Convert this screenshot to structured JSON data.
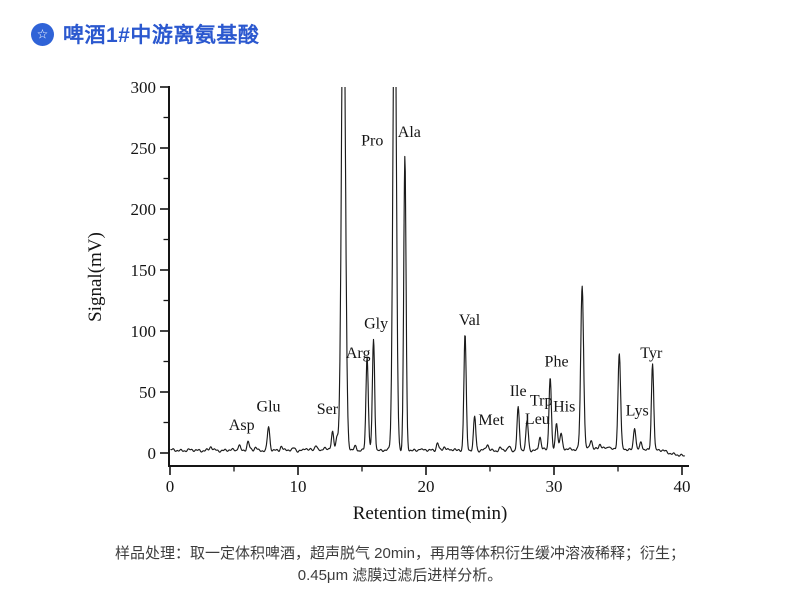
{
  "header": {
    "icon": "star-badge-icon",
    "title": "啤酒1#中游离氨基酸",
    "accent_color": "#2b58cf"
  },
  "caption": "样品处理：取一定体积啤酒，超声脱气 20min，再用等体积衍生缓冲溶液稀释；衍生；0.45μm 滤膜过滤后进样分析。",
  "chart_data": {
    "type": "line",
    "title": "",
    "xlabel": "Retention time(min)",
    "ylabel": "Signal(mV)",
    "xlim": [
      0,
      40
    ],
    "ylim": [
      0,
      300
    ],
    "xticks": [
      0,
      10,
      20,
      30,
      40
    ],
    "yticks": [
      0,
      50,
      100,
      150,
      200,
      250,
      300
    ],
    "x_minor_step": 5,
    "y_minor_step": 25,
    "grid": false,
    "legend": "none",
    "line_color": "#1b1b1b",
    "baseline_mv": 2.2,
    "peaks": [
      {
        "rt": 3.2,
        "mv": 5
      },
      {
        "rt": 5.4,
        "mv": 7
      },
      {
        "name": "Asp",
        "rt": 6.1,
        "mv": 9
      },
      {
        "rt": 6.7,
        "mv": 5
      },
      {
        "name": "Glu",
        "rt": 7.7,
        "mv": 21
      },
      {
        "rt": 8.7,
        "mv": 6
      },
      {
        "rt": 9.7,
        "mv": 4
      },
      {
        "rt": 10.6,
        "mv": 4
      },
      {
        "rt": 11.4,
        "mv": 7
      },
      {
        "rt": 12.05,
        "mv": 5
      },
      {
        "name": "Ser",
        "rt": 12.7,
        "mv": 18
      },
      {
        "rt": 13.05,
        "mv": 12
      },
      {
        "rt": 13.55,
        "mv": 300,
        "offscale": true,
        "sigma": 0.15
      },
      {
        "rt": 14.5,
        "mv": 6
      },
      {
        "name": "Arg",
        "rt": 15.4,
        "mv": 79
      },
      {
        "name": "Gly",
        "rt": 15.9,
        "mv": 93
      },
      {
        "name": "Pro",
        "rt": 17.55,
        "mv": 300,
        "offscale": true,
        "sigma": 0.13
      },
      {
        "name": "Ala",
        "rt": 18.35,
        "mv": 243
      },
      {
        "rt": 19.5,
        "mv": 4
      },
      {
        "rt": 20.9,
        "mv": 9
      },
      {
        "rt": 21.45,
        "mv": 5
      },
      {
        "rt": 22.2,
        "mv": 4
      },
      {
        "name": "Val",
        "rt": 23.05,
        "mv": 97
      },
      {
        "name": "Met",
        "rt": 23.8,
        "mv": 30
      },
      {
        "rt": 24.8,
        "mv": 7
      },
      {
        "rt": 25.8,
        "mv": 4
      },
      {
        "rt": 26.5,
        "mv": 5
      },
      {
        "name": "Ile",
        "rt": 27.2,
        "mv": 37
      },
      {
        "name": "Leu",
        "rt": 27.9,
        "mv": 26
      },
      {
        "name": "Trp",
        "rt": 28.9,
        "mv": 13
      },
      {
        "name": "Phe",
        "rt": 29.7,
        "mv": 62
      },
      {
        "name": "His",
        "rt": 30.2,
        "mv": 25
      },
      {
        "rt": 30.55,
        "mv": 15
      },
      {
        "rt": 32.2,
        "mv": 136,
        "sigma": 0.11
      },
      {
        "rt": 32.9,
        "mv": 10
      },
      {
        "rt": 33.6,
        "mv": 6
      },
      {
        "rt": 34.3,
        "mv": 5
      },
      {
        "rt": 35.1,
        "mv": 81,
        "sigma": 0.1
      },
      {
        "name": "Lys",
        "rt": 36.3,
        "mv": 21
      },
      {
        "rt": 36.8,
        "mv": 8
      },
      {
        "name": "Tyr",
        "rt": 37.7,
        "mv": 74
      }
    ],
    "labels": [
      {
        "text": "Asp",
        "rt": 5.6,
        "mv": 23
      },
      {
        "text": "Glu",
        "rt": 7.7,
        "mv": 38
      },
      {
        "text": "Ser",
        "rt": 12.3,
        "mv": 36
      },
      {
        "text": "Arg",
        "rt": 14.7,
        "mv": 82
      },
      {
        "text": "Pro",
        "rt": 15.8,
        "mv": 256
      },
      {
        "text": "Gly",
        "rt": 16.1,
        "mv": 106
      },
      {
        "text": "Ala",
        "rt": 18.7,
        "mv": 263
      },
      {
        "text": "Val",
        "rt": 23.4,
        "mv": 109
      },
      {
        "text": "Met",
        "rt": 25.1,
        "mv": 27
      },
      {
        "text": "Ile",
        "rt": 27.2,
        "mv": 51
      },
      {
        "text": "Leu",
        "rt": 28.7,
        "mv": 28
      },
      {
        "text": "Trp",
        "rt": 29.0,
        "mv": 43
      },
      {
        "text": "Phe",
        "rt": 30.2,
        "mv": 75
      },
      {
        "text": "His",
        "rt": 30.8,
        "mv": 38
      },
      {
        "text": "Lys",
        "rt": 36.5,
        "mv": 35
      },
      {
        "text": "Tyr",
        "rt": 37.6,
        "mv": 82
      }
    ]
  }
}
